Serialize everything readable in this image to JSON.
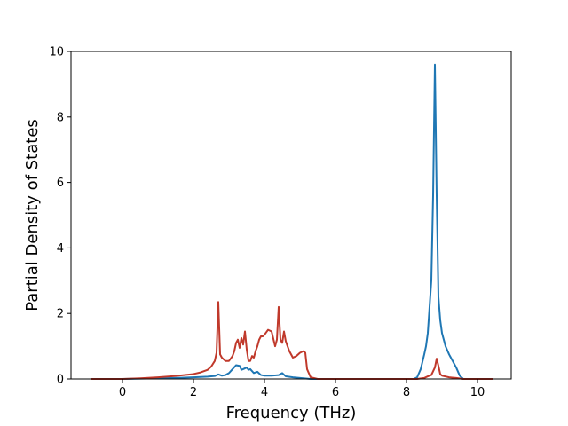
{
  "chart_data": {
    "type": "line",
    "title": "",
    "xlabel": "Frequency (THz)",
    "ylabel": "Partial Density of States",
    "xlim": [
      -1.45,
      10.95
    ],
    "ylim": [
      0,
      10
    ],
    "xticks": [
      0,
      2,
      4,
      6,
      8,
      10
    ],
    "yticks": [
      0,
      2,
      4,
      6,
      8,
      10
    ],
    "grid": false,
    "legend": "none",
    "series": [
      {
        "color": "#1f77b4",
        "x": [
          -0.9,
          0.0,
          0.5,
          1.0,
          1.5,
          2.0,
          2.4,
          2.6,
          2.7,
          2.8,
          2.9,
          3.0,
          3.1,
          3.2,
          3.3,
          3.35,
          3.4,
          3.5,
          3.55,
          3.6,
          3.7,
          3.8,
          3.9,
          4.0,
          4.2,
          4.4,
          4.5,
          4.6,
          4.8,
          5.0,
          5.1,
          5.2,
          5.3,
          5.5,
          6.0,
          7.0,
          8.0,
          8.2,
          8.3,
          8.4,
          8.5,
          8.55,
          8.6,
          8.65,
          8.7,
          8.75,
          8.8,
          8.85,
          8.9,
          8.95,
          9.0,
          9.1,
          9.2,
          9.3,
          9.4,
          9.5,
          9.6,
          10.0,
          10.45
        ],
        "y": [
          0,
          0,
          0.01,
          0.02,
          0.03,
          0.05,
          0.07,
          0.09,
          0.14,
          0.1,
          0.12,
          0.18,
          0.3,
          0.42,
          0.4,
          0.28,
          0.3,
          0.35,
          0.28,
          0.3,
          0.18,
          0.22,
          0.12,
          0.1,
          0.1,
          0.12,
          0.18,
          0.08,
          0.05,
          0.03,
          0.02,
          0.01,
          0.0,
          0.0,
          0.0,
          0.0,
          0.0,
          0.0,
          0.05,
          0.3,
          0.75,
          1.0,
          1.4,
          2.2,
          3.0,
          5.6,
          9.6,
          5.6,
          2.5,
          1.8,
          1.4,
          1.0,
          0.75,
          0.55,
          0.35,
          0.1,
          0.0,
          0.0,
          0.0
        ]
      },
      {
        "color": "#c0392b",
        "x": [
          -0.9,
          0.0,
          0.5,
          1.0,
          1.5,
          2.0,
          2.2,
          2.4,
          2.5,
          2.6,
          2.65,
          2.7,
          2.75,
          2.8,
          2.9,
          3.0,
          3.1,
          3.15,
          3.2,
          3.25,
          3.3,
          3.35,
          3.4,
          3.45,
          3.5,
          3.55,
          3.6,
          3.65,
          3.7,
          3.75,
          3.8,
          3.85,
          3.9,
          3.95,
          4.0,
          4.1,
          4.2,
          4.3,
          4.35,
          4.4,
          4.45,
          4.5,
          4.55,
          4.6,
          4.65,
          4.7,
          4.8,
          4.9,
          5.0,
          5.1,
          5.15,
          5.2,
          5.3,
          5.5,
          6.0,
          7.0,
          8.0,
          8.3,
          8.5,
          8.6,
          8.7,
          8.8,
          8.85,
          8.9,
          8.95,
          9.0,
          9.2,
          9.4,
          9.6,
          10.0,
          10.45
        ],
        "y": [
          0,
          0,
          0.02,
          0.05,
          0.09,
          0.15,
          0.2,
          0.28,
          0.38,
          0.55,
          0.8,
          2.35,
          0.75,
          0.65,
          0.55,
          0.55,
          0.7,
          0.85,
          1.1,
          1.2,
          0.95,
          1.25,
          1.05,
          1.45,
          0.9,
          0.55,
          0.55,
          0.7,
          0.65,
          0.85,
          1.0,
          1.2,
          1.3,
          1.3,
          1.35,
          1.5,
          1.45,
          1.0,
          1.2,
          2.2,
          1.2,
          1.1,
          1.45,
          1.15,
          1.0,
          0.85,
          0.65,
          0.7,
          0.8,
          0.85,
          0.8,
          0.3,
          0.05,
          0.0,
          0.0,
          0.0,
          0.0,
          0.0,
          0.03,
          0.08,
          0.12,
          0.35,
          0.62,
          0.4,
          0.15,
          0.1,
          0.05,
          0.03,
          0.0,
          0.0,
          0.0
        ]
      }
    ]
  }
}
